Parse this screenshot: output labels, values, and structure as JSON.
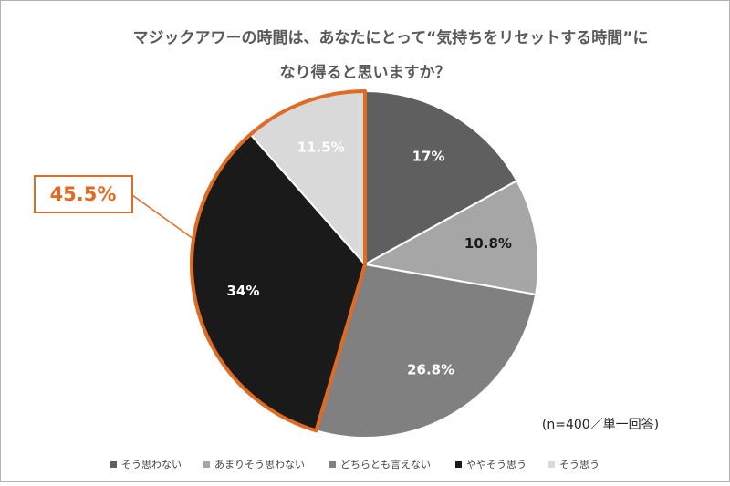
{
  "chart_data": {
    "type": "pie",
    "title": [
      "マジックアワーの時間は、あなたにとって“気持ちをリセットする時間”に",
      "なり得ると思いますか？"
    ],
    "categories": [
      "そう思わない",
      "あまりそう思わない",
      "どちらとも言えない",
      "ややそう思う",
      "そう思う"
    ],
    "values": [
      17,
      10.8,
      26.8,
      34,
      11.5
    ],
    "value_labels": [
      "17%",
      "10.8%",
      "26.8%",
      "34%",
      "11.5%"
    ],
    "colors": [
      "#5f5f5f",
      "#a6a6a6",
      "#808080",
      "#1a1a1a",
      "#d9d9d9"
    ],
    "label_colors": [
      "#ffffff",
      "#1a1a1a",
      "#ffffff",
      "#ffffff",
      "#ffffff"
    ],
    "highlight": [
      3,
      4
    ],
    "highlight_color": "#e06b25",
    "annotation": "45.5%",
    "note": "(n=400／単一回答)"
  }
}
